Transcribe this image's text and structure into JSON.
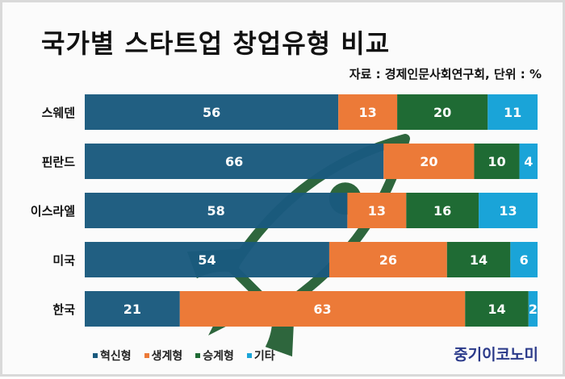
{
  "title": "국가별 스타트업 창업유형 비교",
  "source": "자료 : 경제인문사회연구회, 단위 : %",
  "brand": "중기이코노미",
  "colors": {
    "innovation": "#1a5a7e",
    "livelihood": "#ec7a38",
    "succession": "#1f6b34",
    "other": "#1aa4d8",
    "rocket": "#1d5a2d"
  },
  "chart_data": {
    "type": "bar",
    "orientation": "horizontal",
    "stacked": true,
    "unit": "%",
    "categories": [
      "스웨덴",
      "핀란드",
      "이스라엘",
      "미국",
      "한국"
    ],
    "series": [
      {
        "name": "혁신형",
        "values": [
          56,
          66,
          58,
          54,
          21
        ]
      },
      {
        "name": "생계형",
        "values": [
          13,
          20,
          13,
          26,
          63
        ]
      },
      {
        "name": "승계형",
        "values": [
          20,
          10,
          16,
          14,
          14
        ]
      },
      {
        "name": "기타",
        "values": [
          11,
          4,
          13,
          6,
          2
        ]
      }
    ],
    "xlim": [
      0,
      100
    ],
    "legend_position": "bottom-left",
    "grid": false
  }
}
